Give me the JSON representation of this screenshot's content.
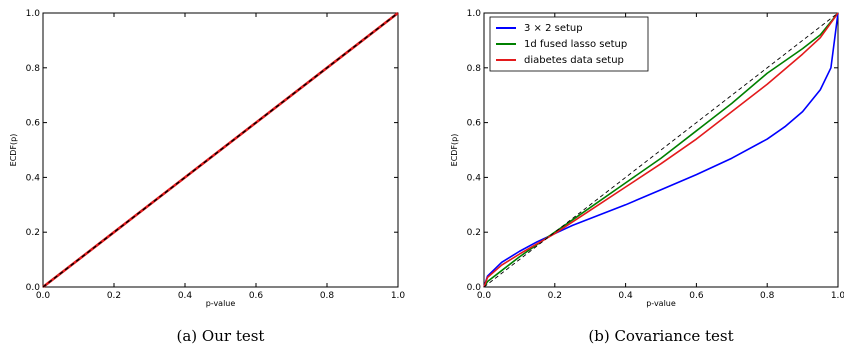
{
  "chart_data": [
    {
      "type": "line",
      "caption": "(a)  Our test",
      "xlabel": "p-value",
      "ylabel": "ECDF(p)",
      "xlim": [
        0,
        1
      ],
      "ylim": [
        0,
        1
      ],
      "xticks": [
        "0.0",
        "0.2",
        "0.4",
        "0.6",
        "0.8",
        "1.0"
      ],
      "yticks": [
        "0.0",
        "0.2",
        "0.4",
        "0.6",
        "0.8",
        "1.0"
      ],
      "grid": false,
      "reference_line": {
        "style": "dashed",
        "color": "#000000",
        "x": [
          0,
          1
        ],
        "y": [
          0,
          1
        ]
      },
      "series": [
        {
          "color": "#e31a1c",
          "x": [
            0,
            0.2,
            0.4,
            0.6,
            0.8,
            1.0
          ],
          "y": [
            0,
            0.2,
            0.4,
            0.6,
            0.8,
            1.0
          ]
        }
      ]
    },
    {
      "type": "line",
      "caption": "(b)  Covariance test",
      "xlabel": "p-value",
      "ylabel": "ECDF(p)",
      "xlim": [
        0,
        1
      ],
      "ylim": [
        0,
        1
      ],
      "xticks": [
        "0.0",
        "0.2",
        "0.4",
        "0.6",
        "0.8",
        "1.0"
      ],
      "yticks": [
        "0.0",
        "0.2",
        "0.4",
        "0.6",
        "0.8",
        "1.0"
      ],
      "grid": false,
      "legend_position": "top-left",
      "reference_line": {
        "style": "dashed",
        "color": "#000000",
        "x": [
          0,
          1
        ],
        "y": [
          0,
          1
        ]
      },
      "series": [
        {
          "name": "3 × 2 setup",
          "color": "#0000ff",
          "x": [
            0,
            0.01,
            0.05,
            0.1,
            0.15,
            0.2,
            0.25,
            0.3,
            0.4,
            0.5,
            0.6,
            0.7,
            0.8,
            0.85,
            0.9,
            0.95,
            0.98,
            1.0
          ],
          "y": [
            0,
            0.04,
            0.09,
            0.13,
            0.165,
            0.195,
            0.225,
            0.25,
            0.3,
            0.355,
            0.41,
            0.47,
            0.54,
            0.585,
            0.64,
            0.72,
            0.8,
            1.0
          ]
        },
        {
          "name": "1d fused lasso setup",
          "color": "#008000",
          "x": [
            0,
            0.01,
            0.05,
            0.1,
            0.2,
            0.3,
            0.4,
            0.5,
            0.6,
            0.7,
            0.8,
            0.9,
            0.95,
            1.0
          ],
          "y": [
            0,
            0.02,
            0.06,
            0.11,
            0.2,
            0.29,
            0.38,
            0.47,
            0.57,
            0.67,
            0.78,
            0.87,
            0.92,
            1.0
          ]
        },
        {
          "name": "diabetes data setup",
          "color": "#e31a1c",
          "x": [
            0,
            0.01,
            0.05,
            0.1,
            0.2,
            0.3,
            0.4,
            0.5,
            0.6,
            0.7,
            0.8,
            0.9,
            0.95,
            1.0
          ],
          "y": [
            0,
            0.035,
            0.08,
            0.12,
            0.195,
            0.28,
            0.365,
            0.45,
            0.54,
            0.64,
            0.74,
            0.85,
            0.91,
            1.0
          ]
        }
      ]
    }
  ]
}
